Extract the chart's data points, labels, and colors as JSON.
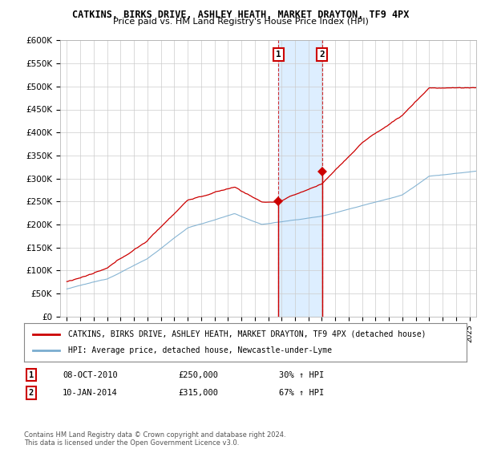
{
  "title1": "CATKINS, BIRKS DRIVE, ASHLEY HEATH, MARKET DRAYTON, TF9 4PX",
  "title2": "Price paid vs. HM Land Registry's House Price Index (HPI)",
  "ylabel_ticks": [
    "£0",
    "£50K",
    "£100K",
    "£150K",
    "£200K",
    "£250K",
    "£300K",
    "£350K",
    "£400K",
    "£450K",
    "£500K",
    "£550K",
    "£600K"
  ],
  "ytick_values": [
    0,
    50000,
    100000,
    150000,
    200000,
    250000,
    300000,
    350000,
    400000,
    450000,
    500000,
    550000,
    600000
  ],
  "sale1_date": 2010.77,
  "sale1_price": 250000,
  "sale1_label": "1",
  "sale2_date": 2014.03,
  "sale2_price": 315000,
  "sale2_label": "2",
  "red_line_color": "#cc0000",
  "blue_line_color": "#7aadcf",
  "shade_color": "#ddeeff",
  "legend_label_red": "CATKINS, BIRKS DRIVE, ASHLEY HEATH, MARKET DRAYTON, TF9 4PX (detached house)",
  "legend_label_blue": "HPI: Average price, detached house, Newcastle-under-Lyme",
  "annotation1_date": "08-OCT-2010",
  "annotation1_price": "£250,000",
  "annotation1_hpi": "30% ↑ HPI",
  "annotation2_date": "10-JAN-2014",
  "annotation2_price": "£315,000",
  "annotation2_hpi": "67% ↑ HPI",
  "footnote": "Contains HM Land Registry data © Crown copyright and database right 2024.\nThis data is licensed under the Open Government Licence v3.0.",
  "background_color": "#ffffff",
  "plot_bg_color": "#ffffff",
  "grid_color": "#cccccc",
  "xmin": 1994.5,
  "xmax": 2025.5,
  "ymin": 0,
  "ymax": 600000
}
